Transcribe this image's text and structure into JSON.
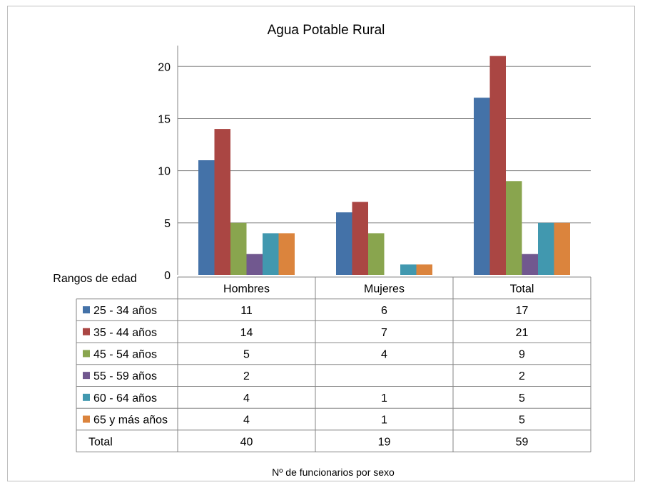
{
  "chart_data": {
    "type": "bar",
    "title": "Agua Potable Rural",
    "xlabel": "Nº de funcionarios por sexo",
    "ylabel": "",
    "table_header_label": "Rangos de edad",
    "ylim": [
      0,
      22
    ],
    "yticks": [
      0,
      5,
      10,
      15,
      20
    ],
    "grid": true,
    "categories": [
      "Hombres",
      "Mujeres",
      "Total"
    ],
    "series": [
      {
        "name": "25 - 34 años",
        "color": "#4472a8",
        "values": [
          11,
          6,
          17
        ]
      },
      {
        "name": "35 - 44 años",
        "color": "#aa4643",
        "values": [
          14,
          7,
          21
        ]
      },
      {
        "name": "45 - 54 años",
        "color": "#89a54e",
        "values": [
          5,
          4,
          9
        ]
      },
      {
        "name": "55 - 59 años",
        "color": "#71588f",
        "values": [
          2,
          null,
          2
        ]
      },
      {
        "name": "60 - 64 años",
        "color": "#4198af",
        "values": [
          4,
          1,
          5
        ]
      },
      {
        "name": "65 y más años",
        "color": "#db843d",
        "values": [
          4,
          1,
          5
        ]
      }
    ],
    "total_row": {
      "label": "Total",
      "values": [
        40,
        19,
        59
      ]
    }
  }
}
